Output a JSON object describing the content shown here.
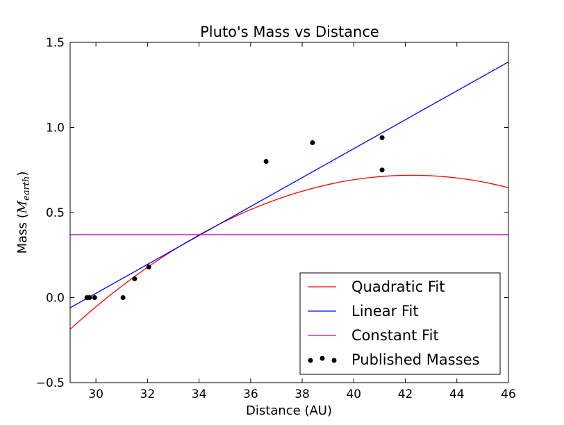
{
  "chart_data": {
    "type": "scatter",
    "title": "Pluto's Mass vs Distance",
    "xlabel": "Distance (AU)",
    "ylabel": {
      "prefix": "Mass (",
      "symbol": "M",
      "subscript": "earth",
      "suffix": ")"
    },
    "xlim": [
      29,
      46
    ],
    "ylim": [
      -0.5,
      1.5
    ],
    "xticks": [
      30,
      32,
      34,
      36,
      38,
      40,
      42,
      44,
      46
    ],
    "yticks": [
      -0.5,
      0.0,
      0.5,
      1.0,
      1.5
    ],
    "ytick_labels": [
      "−0.5",
      "0.0",
      "0.5",
      "1.0",
      "1.5"
    ],
    "grid": false,
    "legend_position": "lower-right",
    "series": [
      {
        "name": "Quadratic Fit",
        "kind": "curve",
        "color": "#ff0000",
        "x": [
          29.0,
          29.5,
          30.0,
          30.5,
          31.0,
          31.5,
          32.0,
          32.5,
          33.0,
          33.5,
          34.0,
          34.5,
          35.0,
          35.5,
          36.0,
          36.5,
          37.0,
          37.5,
          38.0,
          38.5,
          39.0,
          39.5,
          40.0,
          40.5,
          41.0,
          41.5,
          42.0,
          42.5,
          43.0,
          43.5,
          44.0,
          44.5,
          45.0,
          45.5,
          46.0
        ],
        "y": [
          -0.186,
          -0.119,
          -0.054,
          0.008,
          0.067,
          0.124,
          0.178,
          0.229,
          0.278,
          0.324,
          0.368,
          0.409,
          0.448,
          0.484,
          0.517,
          0.548,
          0.576,
          0.602,
          0.625,
          0.646,
          0.664,
          0.68,
          0.693,
          0.703,
          0.711,
          0.716,
          0.719,
          0.719,
          0.716,
          0.711,
          0.703,
          0.693,
          0.68,
          0.664,
          0.646
        ]
      },
      {
        "name": "Linear Fit",
        "kind": "line",
        "color": "#0000ff",
        "x": [
          29,
          46
        ],
        "y": [
          -0.06,
          1.385
        ]
      },
      {
        "name": "Constant Fit",
        "kind": "line",
        "color": "#bf00bf",
        "x": [
          29,
          46
        ],
        "y": [
          0.37,
          0.37
        ]
      },
      {
        "name": "Published Masses",
        "kind": "scatter",
        "color": "#000000",
        "points": [
          {
            "x": 29.65,
            "y": 0.0
          },
          {
            "x": 29.75,
            "y": 0.0
          },
          {
            "x": 29.95,
            "y": 0.0
          },
          {
            "x": 31.05,
            "y": 0.0
          },
          {
            "x": 31.5,
            "y": 0.11
          },
          {
            "x": 32.05,
            "y": 0.18
          },
          {
            "x": 36.6,
            "y": 0.8
          },
          {
            "x": 38.4,
            "y": 0.91
          },
          {
            "x": 41.1,
            "y": 0.94
          },
          {
            "x": 41.1,
            "y": 0.75
          }
        ]
      }
    ]
  }
}
